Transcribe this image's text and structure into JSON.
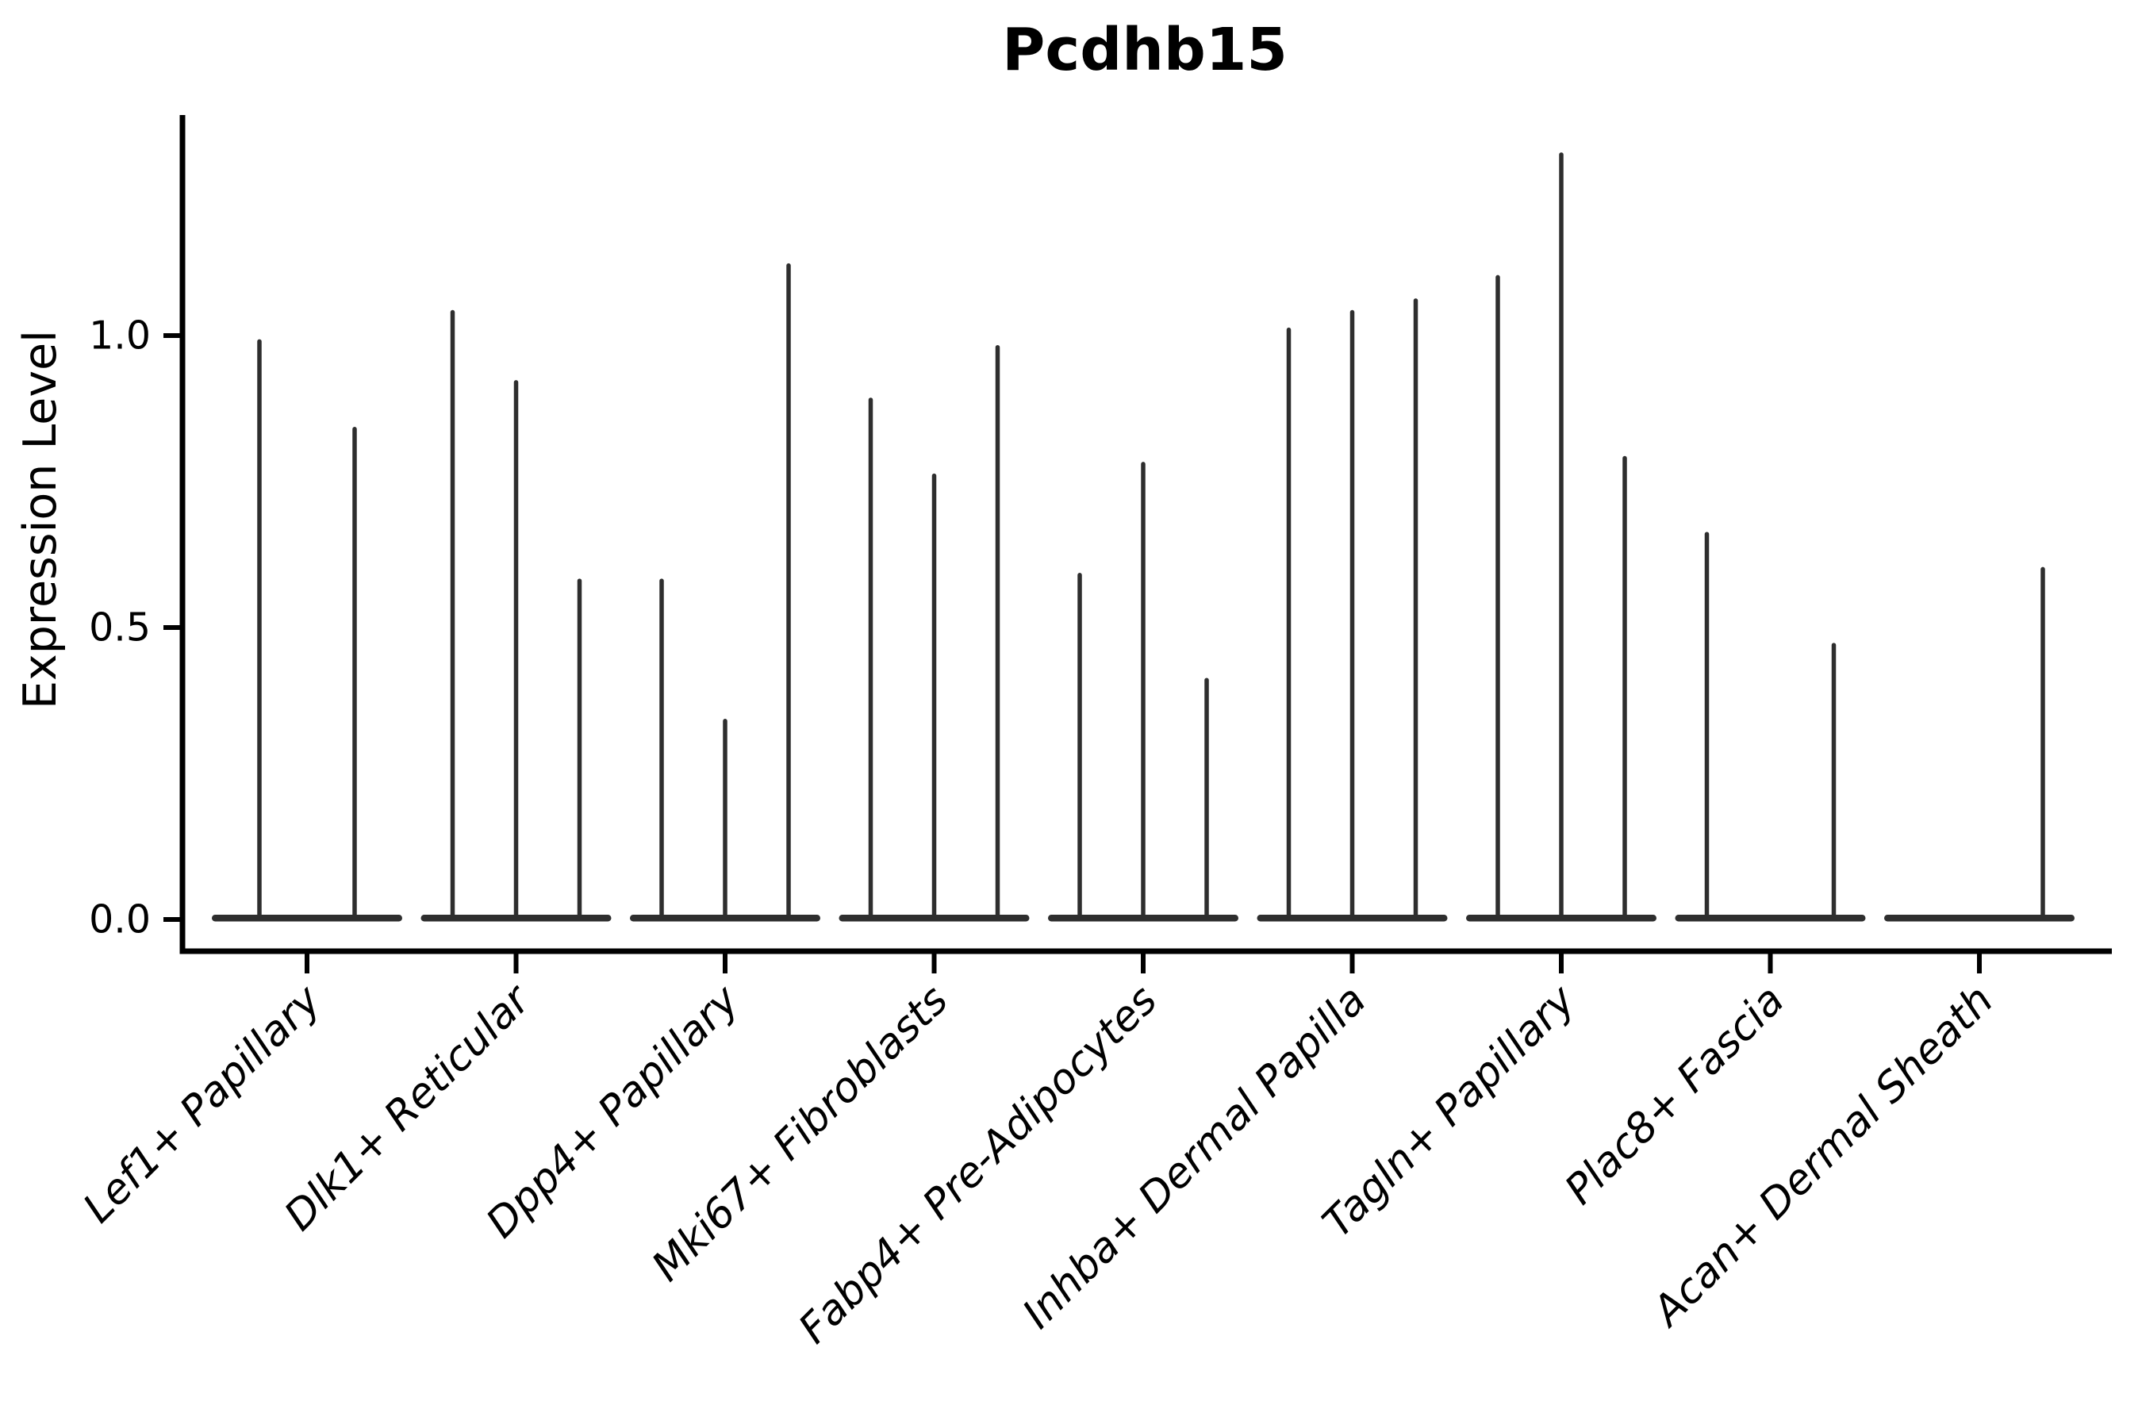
{
  "colors": {
    "background": "#ffffff",
    "violin": "#2e2e2e",
    "axis": "#000000",
    "text": "#000000"
  },
  "chart_data": {
    "type": "violin",
    "title": "Pcdhb15",
    "ylabel": "Expression Level",
    "xlabel": "",
    "grid": false,
    "legend": "none",
    "ylim": [
      -0.06,
      1.37
    ],
    "ytick_labels": [
      "0.0",
      "0.5",
      "1.0"
    ],
    "ytick_values": [
      0.0,
      0.5,
      1.0
    ],
    "categories": [
      "Lef1+ Papillary",
      "Dlk1+ Reticular",
      "Dpp4+ Papillary",
      "Mki67+ Fibroblasts",
      "Fabp4+ Pre-Adipocytes",
      "Inhba+ Dermal Papilla",
      "Tagln+ Papillary",
      "Plac8+ Fascia",
      "Acan+ Dermal Sheath"
    ],
    "shape_note": "Needle-thin violins: wide flat base at expression 0, vertical spike up to peak value; peak 0 means completely flat violin (baseline only)",
    "groups": [
      {
        "label": "Lef1+ Papillary",
        "violin_peaks": [
          0.99,
          0.84
        ]
      },
      {
        "label": "Dlk1+ Reticular",
        "violin_peaks": [
          1.04,
          0.92,
          0.58
        ]
      },
      {
        "label": "Dpp4+ Papillary",
        "violin_peaks": [
          0.58,
          0.34,
          1.12
        ]
      },
      {
        "label": "Mki67+ Fibroblasts",
        "violin_peaks": [
          0.89,
          0.76,
          0.98
        ]
      },
      {
        "label": "Fabp4+ Pre-Adipocytes",
        "violin_peaks": [
          0.59,
          0.78,
          0.41
        ]
      },
      {
        "label": "Inhba+ Dermal Papilla",
        "violin_peaks": [
          1.01,
          1.04,
          1.06
        ]
      },
      {
        "label": "Tagln+ Papillary",
        "violin_peaks": [
          1.1,
          1.31,
          0.79
        ]
      },
      {
        "label": "Plac8+ Fascia",
        "violin_peaks": [
          0.66,
          0,
          0.47
        ]
      },
      {
        "label": "Acan+ Dermal Sheath",
        "violin_peaks": [
          0,
          0,
          0.6
        ]
      }
    ]
  }
}
